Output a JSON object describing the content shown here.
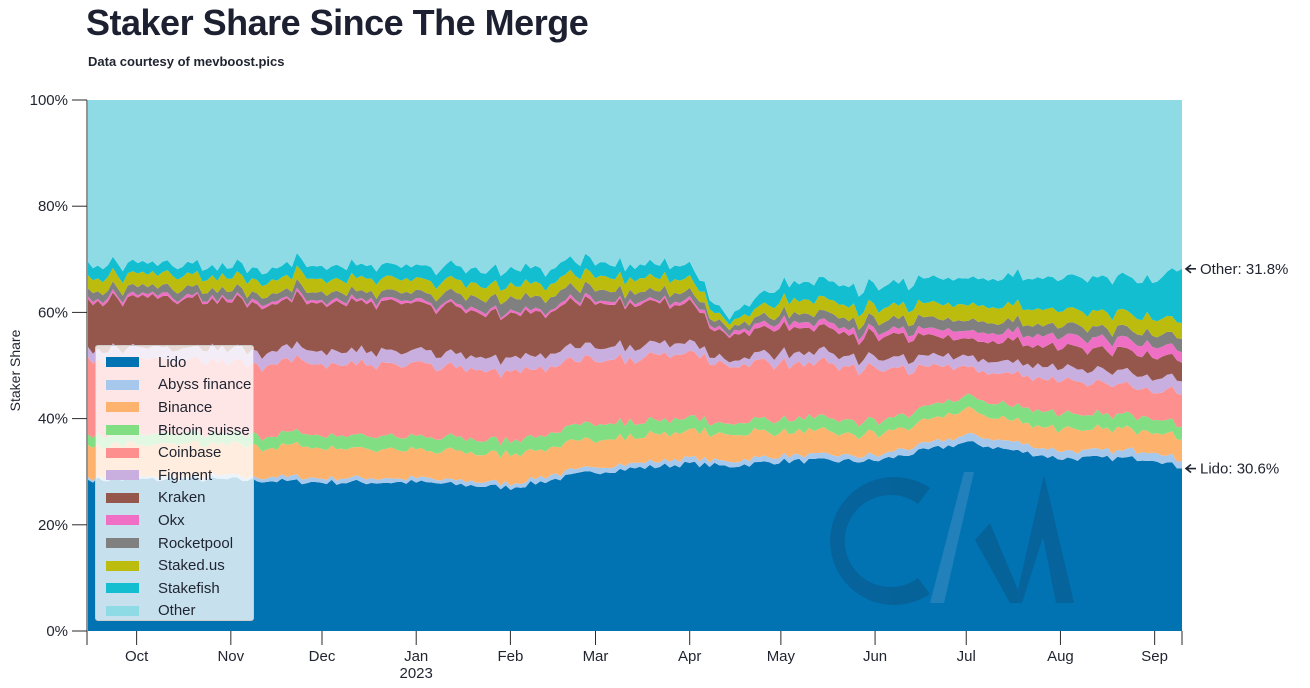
{
  "header": {
    "title": "Staker Share Since The Merge",
    "subtitle": "Data courtesy of mevboost.pics"
  },
  "chart_data": {
    "type": "area",
    "stacked": true,
    "title": "Staker Share Since The Merge",
    "subtitle": "Data courtesy of mevboost.pics",
    "xlabel": "",
    "ylabel": "Staker Share",
    "ylim": [
      0,
      100
    ],
    "xlim": [
      "2022-09-15",
      "2023-09-10"
    ],
    "y_ticks": [
      "0%",
      "20%",
      "40%",
      "60%",
      "80%",
      "100%"
    ],
    "y_tick_values": [
      0,
      20,
      40,
      60,
      80,
      100
    ],
    "x_ticks": [
      {
        "date": "2022-10-01",
        "label": "Oct",
        "sublabel": ""
      },
      {
        "date": "2022-11-01",
        "label": "Nov",
        "sublabel": ""
      },
      {
        "date": "2022-12-01",
        "label": "Dec",
        "sublabel": ""
      },
      {
        "date": "2023-01-01",
        "label": "Jan",
        "sublabel": "2023"
      },
      {
        "date": "2023-02-01",
        "label": "Feb",
        "sublabel": ""
      },
      {
        "date": "2023-03-01",
        "label": "Mar",
        "sublabel": ""
      },
      {
        "date": "2023-04-01",
        "label": "Apr",
        "sublabel": ""
      },
      {
        "date": "2023-05-01",
        "label": "May",
        "sublabel": ""
      },
      {
        "date": "2023-06-01",
        "label": "Jun",
        "sublabel": ""
      },
      {
        "date": "2023-07-01",
        "label": "Jul",
        "sublabel": ""
      },
      {
        "date": "2023-08-01",
        "label": "Aug",
        "sublabel": ""
      },
      {
        "date": "2023-09-01",
        "label": "Sep",
        "sublabel": ""
      }
    ],
    "grid": false,
    "legend_position": "bottom-left",
    "x": [
      "2022-09-15",
      "2022-10-01",
      "2022-11-01",
      "2022-12-01",
      "2023-01-01",
      "2023-02-01",
      "2023-03-01",
      "2023-04-01",
      "2023-04-13",
      "2023-05-01",
      "2023-06-01",
      "2023-07-01",
      "2023-08-01",
      "2023-09-01",
      "2023-09-10"
    ],
    "series": [
      {
        "name": "Lido",
        "color": "#0173b2",
        "values": [
          28.5,
          28.5,
          28.5,
          28.0,
          28.0,
          27.0,
          30.0,
          31.5,
          31.0,
          32.0,
          32.0,
          35.5,
          32.5,
          32.5,
          30.6
        ]
      },
      {
        "name": "Abyss finance",
        "color": "#a6c8ec",
        "values": [
          0.5,
          0.5,
          0.7,
          0.8,
          0.7,
          0.8,
          1.0,
          1.0,
          1.0,
          1.0,
          1.0,
          1.5,
          1.5,
          1.5,
          1.4
        ]
      },
      {
        "name": "Binance",
        "color": "#fdb36e",
        "values": [
          6.0,
          6.0,
          5.8,
          5.7,
          5.3,
          5.7,
          5.0,
          5.0,
          5.0,
          4.5,
          4.0,
          4.5,
          4.0,
          4.0,
          4.0
        ]
      },
      {
        "name": "Bitcoin suisse",
        "color": "#82de82",
        "values": [
          2.0,
          2.0,
          2.0,
          2.5,
          2.5,
          2.5,
          3.0,
          2.5,
          2.0,
          2.5,
          2.5,
          2.5,
          3.0,
          2.5,
          2.5
        ]
      },
      {
        "name": "Coinbase",
        "color": "#fd8f8f",
        "values": [
          14.5,
          14.0,
          13.5,
          13.5,
          13.5,
          13.0,
          12.0,
          12.0,
          11.0,
          10.5,
          10.0,
          5.5,
          6.0,
          5.5,
          6.0
        ]
      },
      {
        "name": "Figment",
        "color": "#c9aee0",
        "values": [
          2.0,
          2.0,
          2.5,
          2.5,
          2.5,
          2.5,
          2.5,
          2.0,
          1.0,
          2.0,
          2.0,
          2.0,
          2.5,
          2.5,
          2.5
        ]
      },
      {
        "name": "Kraken",
        "color": "#95564b",
        "values": [
          9.0,
          9.5,
          9.0,
          9.0,
          9.0,
          8.0,
          8.5,
          7.5,
          4.5,
          5.0,
          4.0,
          3.5,
          4.0,
          4.0,
          3.5
        ]
      },
      {
        "name": "Okx",
        "color": "#ef6fc4",
        "values": [
          0.5,
          0.5,
          0.5,
          0.5,
          0.5,
          0.5,
          0.5,
          0.5,
          0.5,
          1.0,
          1.0,
          1.5,
          2.0,
          2.0,
          2.0
        ]
      },
      {
        "name": "Rocketpool",
        "color": "#808080",
        "values": [
          1.5,
          1.5,
          1.5,
          1.5,
          1.5,
          2.5,
          2.0,
          1.5,
          1.0,
          1.5,
          2.0,
          2.0,
          2.0,
          2.0,
          2.5
        ]
      },
      {
        "name": "Staked.us",
        "color": "#bcbc0f",
        "values": [
          2.5,
          2.5,
          2.5,
          2.5,
          2.5,
          2.5,
          2.5,
          2.5,
          1.0,
          2.5,
          2.5,
          3.0,
          3.0,
          3.0,
          3.0
        ]
      },
      {
        "name": "Stakefish",
        "color": "#12bed0",
        "values": [
          2.5,
          2.0,
          2.0,
          2.5,
          2.5,
          3.0,
          2.5,
          2.5,
          1.0,
          3.0,
          4.0,
          5.0,
          6.0,
          7.0,
          10.2
        ]
      },
      {
        "name": "Other",
        "color": "#8edbe6",
        "values": [
          30.5,
          31.0,
          31.5,
          31.0,
          31.5,
          32.0,
          30.5,
          31.5,
          41.0,
          34.5,
          35.0,
          33.5,
          33.5,
          33.5,
          31.8
        ]
      }
    ],
    "annotations": [
      {
        "series": "Other",
        "text": "Other: 31.8%",
        "value": 31.8
      },
      {
        "series": "Lido",
        "text": "Lido: 30.6%",
        "value": 30.6
      }
    ],
    "watermark": "CM"
  }
}
